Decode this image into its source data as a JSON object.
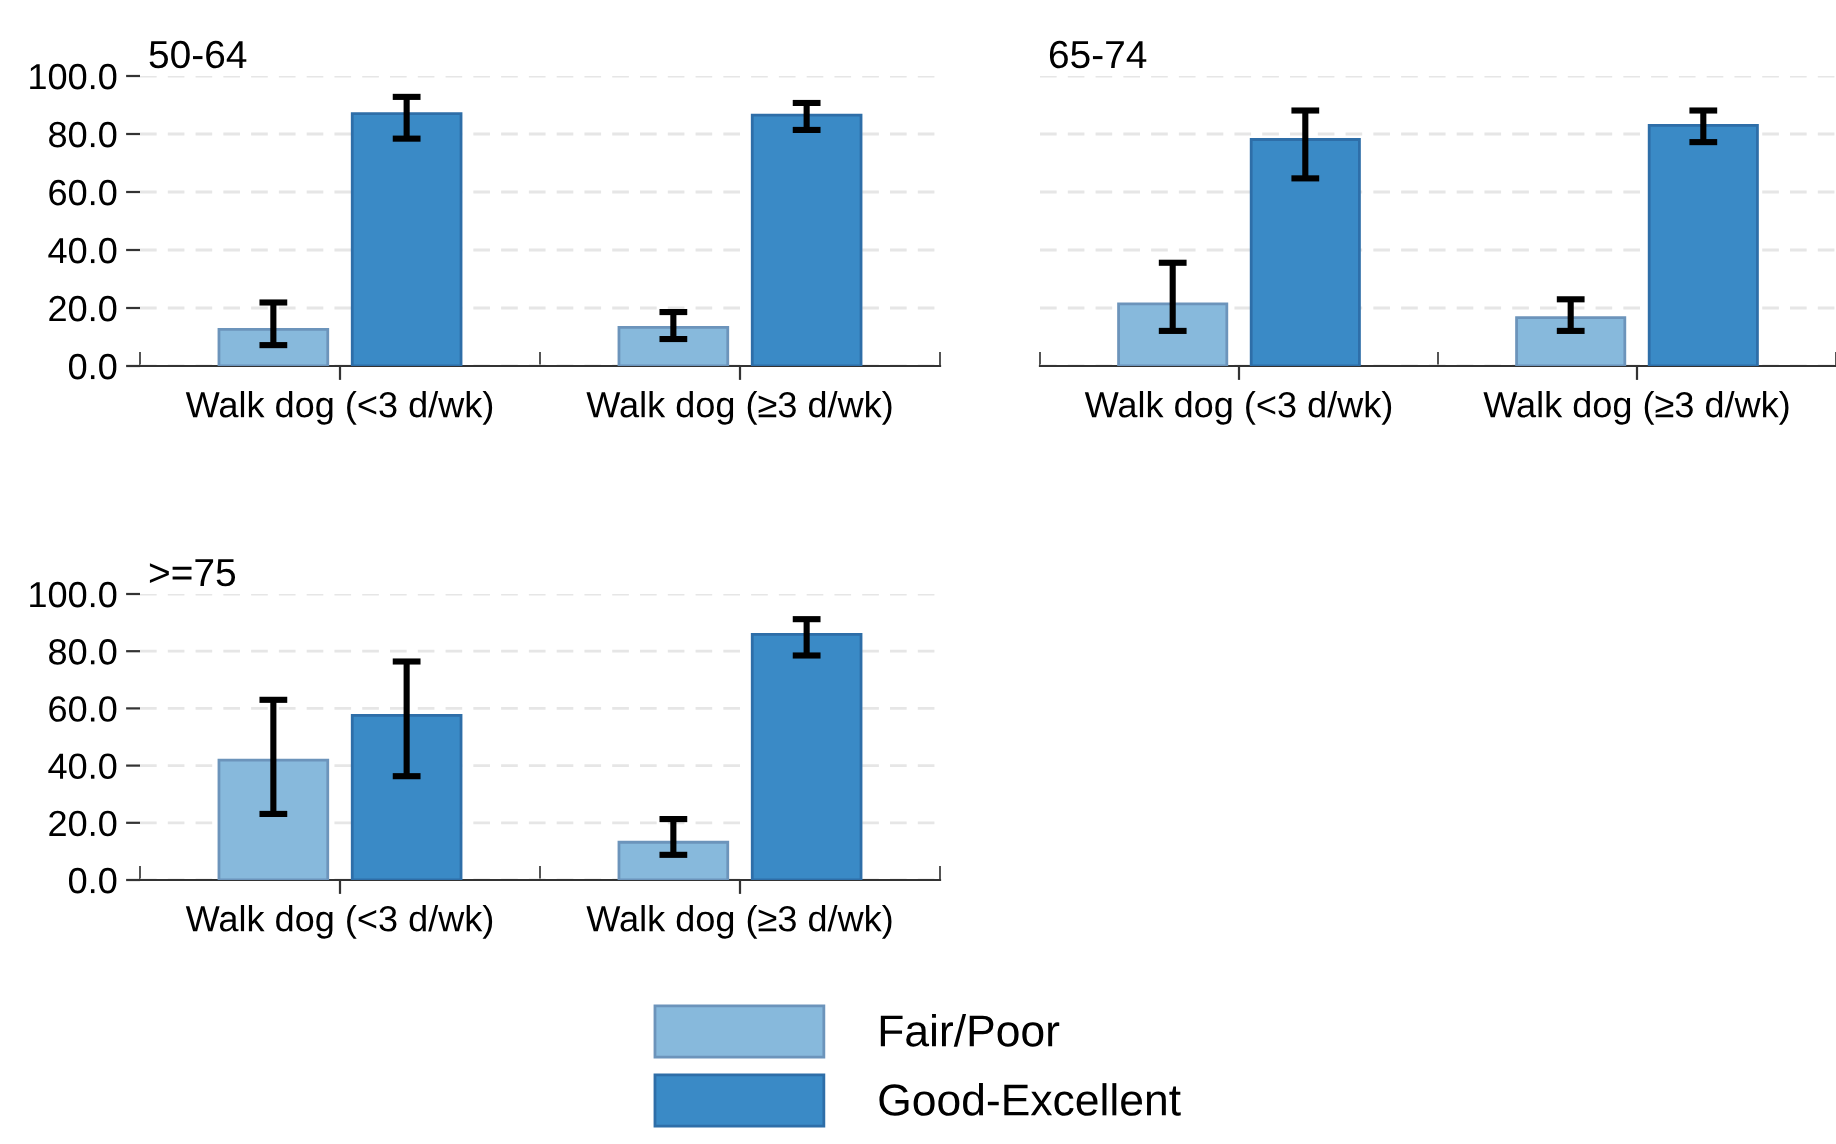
{
  "chart_data": [
    {
      "type": "bar",
      "title": "50-64",
      "categories": [
        "Walk dog (<3 d/wk)",
        "Walk dog (≥3 d/wk)"
      ],
      "series": [
        {
          "name": "Fair/Poor",
          "color": "#87b9dc",
          "values": [
            12.6,
            13.3
          ],
          "errors": [
            [
              7.2,
              21.9
            ],
            [
              9.3,
              18.6
            ]
          ]
        },
        {
          "name": "Good-Excellent",
          "color": "#3a8ac6",
          "values": [
            87.0,
            86.5
          ],
          "errors": [
            [
              78.4,
              92.8
            ],
            [
              81.4,
              90.7
            ]
          ]
        }
      ],
      "ylim": [
        0,
        100
      ],
      "yticks": [
        {
          "value": 0,
          "label": "0.0"
        },
        {
          "value": 20,
          "label": "20.0"
        },
        {
          "value": 40,
          "label": "40.0"
        },
        {
          "value": 60,
          "label": "60.0"
        },
        {
          "value": 80,
          "label": "80.0"
        },
        {
          "value": 100,
          "label": "100.0"
        }
      ],
      "grid": "y",
      "legend": "bottom"
    },
    {
      "type": "bar",
      "title": "65-74",
      "categories": [
        "Walk dog (<3 d/wk)",
        "Walk dog (≥3 d/wk)"
      ],
      "series": [
        {
          "name": "Fair/Poor",
          "color": "#87b9dc",
          "values": [
            21.4,
            16.7
          ],
          "errors": [
            [
              12.1,
              35.6
            ],
            [
              12.1,
              23.0
            ]
          ]
        },
        {
          "name": "Good-Excellent",
          "color": "#3a8ac6",
          "values": [
            78.1,
            83.0
          ],
          "errors": [
            [
              64.7,
              88.1
            ],
            [
              77.2,
              88.1
            ]
          ]
        }
      ],
      "ylim": [
        0,
        100
      ],
      "yticks": [
        {
          "value": 0,
          "label": "0.0"
        },
        {
          "value": 20,
          "label": "20.0"
        },
        {
          "value": 40,
          "label": "40.0"
        },
        {
          "value": 60,
          "label": "60.0"
        },
        {
          "value": 80,
          "label": "80.0"
        },
        {
          "value": 100,
          "label": "100.0"
        }
      ],
      "grid": "y",
      "tick_labels": "x",
      "legend": "bottom"
    },
    {
      "type": "bar",
      "title": ">=75",
      "categories": [
        "Walk dog (<3 d/wk)",
        "Walk dog (≥3 d/wk)"
      ],
      "series": [
        {
          "name": "Fair/Poor",
          "color": "#87b9dc",
          "values": [
            41.9,
            13.2
          ],
          "errors": [
            [
              23.1,
              63.0
            ],
            [
              8.8,
              21.3
            ]
          ]
        },
        {
          "name": "Good-Excellent",
          "color": "#3a8ac6",
          "values": [
            57.6,
            85.9
          ],
          "errors": [
            [
              36.3,
              76.4
            ],
            [
              78.5,
              91.2
            ]
          ]
        }
      ],
      "ylim": [
        0,
        100
      ],
      "yticks": [
        {
          "value": 0,
          "label": "0.0"
        },
        {
          "value": 20,
          "label": "20.0"
        },
        {
          "value": 40,
          "label": "40.0"
        },
        {
          "value": 60,
          "label": "60.0"
        },
        {
          "value": 80,
          "label": "80.0"
        },
        {
          "value": 100,
          "label": "100.0"
        }
      ],
      "grid": "y",
      "legend": "bottom"
    }
  ]
}
